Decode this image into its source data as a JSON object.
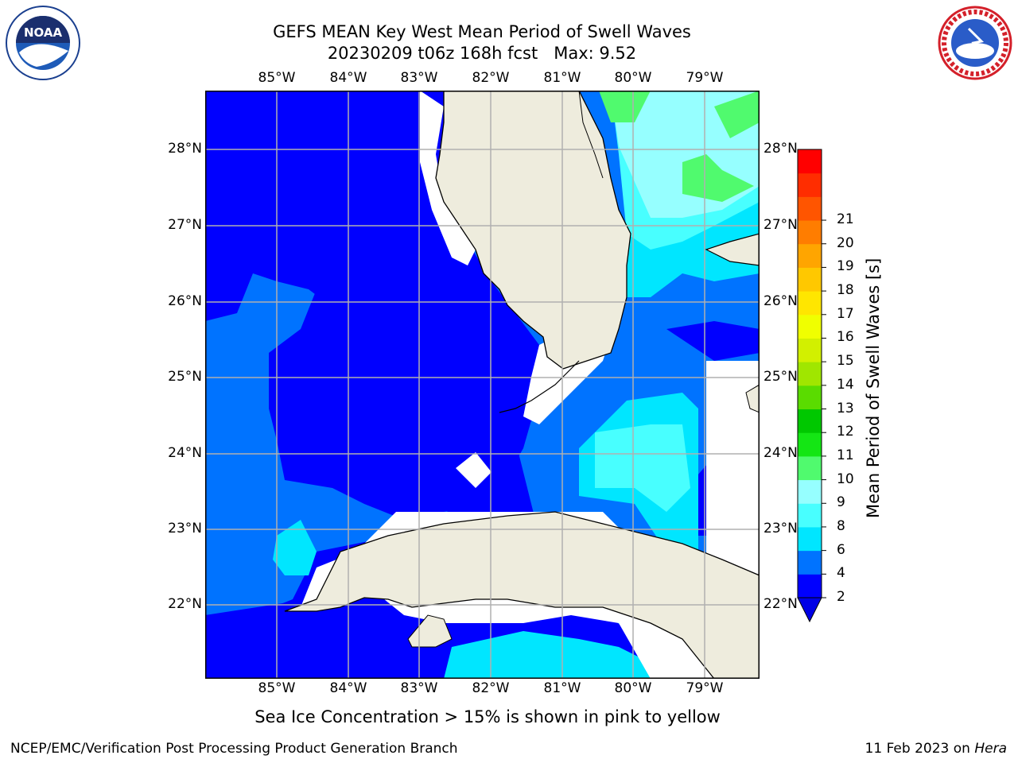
{
  "title": {
    "line1": "GEFS MEAN Key West Mean Period of Swell Waves",
    "line2": "20230209 t06z 168h fcst   Max: 9.52"
  },
  "logos": {
    "left": {
      "name": "noaa-logo",
      "text": "NOAA"
    },
    "right": {
      "name": "nws-logo",
      "text": "NATIONAL WEATHER SERVICE"
    }
  },
  "map": {
    "longitude_labels": [
      "85°W",
      "84°W",
      "83°W",
      "82°W",
      "81°W",
      "80°W",
      "79°W"
    ],
    "latitude_labels": [
      "28°N",
      "27°N",
      "26°N",
      "25°N",
      "24°N",
      "23°N",
      "22°N"
    ],
    "land_color": "#eeecdd",
    "grid_color": "#b0b0b0"
  },
  "colorbar": {
    "title": "Mean Period of Swell Waves [s]",
    "labels": [
      "2",
      "4",
      "6",
      "8",
      "9",
      "10",
      "11",
      "12",
      "13",
      "14",
      "15",
      "16",
      "17",
      "18",
      "19",
      "20",
      "21"
    ],
    "colors": [
      "#0000ff",
      "#0073ff",
      "#00e6ff",
      "#48ffff",
      "#96ffff",
      "#50fa6e",
      "#14e614",
      "#00c800",
      "#5adc00",
      "#a0e600",
      "#d2f000",
      "#f0ff00",
      "#ffe600",
      "#ffc800",
      "#ffa500",
      "#ff7d00",
      "#ff5500",
      "#ff2d00",
      "#ff0000"
    ],
    "extend_color": "#0000e6"
  },
  "note": "Sea Ice Concentration > 15% is shown in pink to yellow",
  "footer": {
    "left": "NCEP/EMC/Verification Post Processing Product Generation Branch",
    "right_date": "11 Feb 2023 on ",
    "right_host": "Hera"
  }
}
